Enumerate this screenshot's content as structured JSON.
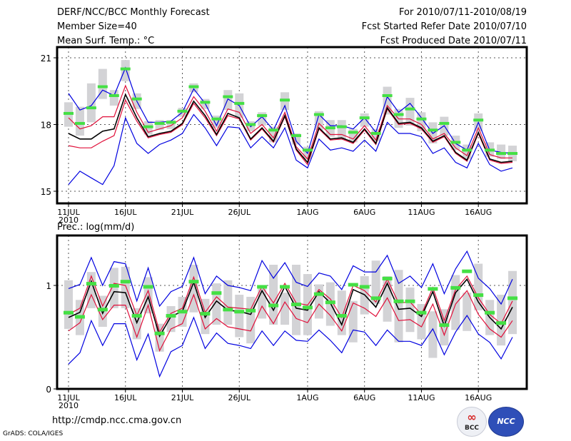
{
  "header": {
    "title": "DERF/NCC/BCC Monthly Forecast",
    "member_size": "Member Size=40",
    "variable_temp": "Mean Surf. Temp.: °C",
    "period": "For 2010/07/11-2010/08/19",
    "start_date": "Fcst Started Refer Date 2010/07/10",
    "produced_date": "Fcst Produced Date 2010/07/11"
  },
  "footer": {
    "url": "http://cmdp.ncc.cma.gov.cn",
    "credit": "GrADS: COLA/IGES",
    "logo_bcc": "BCC",
    "logo_ncc": "NCC"
  },
  "colors": {
    "box": "#d3d3d6",
    "marker": "#44e044",
    "mean": "#000000",
    "inner": "#e0103a",
    "outer": "#0000e0",
    "grid": "#555555"
  },
  "chart_data": [
    {
      "type": "line",
      "title": "Mean Surf. Temp.: °C",
      "x_start": "2010-07-11",
      "x_end": "2010-08-19",
      "days": 40,
      "xtick_labels": [
        "11JUL",
        "16JUL",
        "21JUL",
        "26JUL",
        "1AUG",
        "6AUG",
        "11AUG",
        "16AUG"
      ],
      "xtick_day_index": [
        0,
        5,
        10,
        15,
        21,
        26,
        31,
        36
      ],
      "x_sublabel": "2010",
      "ylim": [
        14.5,
        21.5
      ],
      "yticks": [
        15,
        18,
        21
      ],
      "grid": true,
      "series": [
        {
          "name": "box_upper",
          "values": [
            19.0,
            18.8,
            19.85,
            20.5,
            19.55,
            20.9,
            19.4,
            18.15,
            18.2,
            18.2,
            18.75,
            19.85,
            19.15,
            18.4,
            19.55,
            19.4,
            18.15,
            18.55,
            17.9,
            19.45,
            17.6,
            17.0,
            18.6,
            18.2,
            18.2,
            17.8,
            18.5,
            17.8,
            19.7,
            18.7,
            19.2,
            18.55,
            18.1,
            18.35,
            17.5,
            17.1,
            18.5,
            17.2,
            17.1,
            17.05
          ]
        },
        {
          "name": "box_lower",
          "values": [
            17.9,
            17.5,
            18.1,
            19.15,
            18.85,
            19.95,
            18.7,
            17.55,
            17.75,
            17.8,
            18.35,
            19.45,
            18.7,
            17.85,
            18.65,
            18.3,
            17.7,
            17.95,
            17.2,
            18.65,
            17.1,
            16.45,
            17.75,
            17.45,
            17.3,
            17.2,
            17.9,
            17.25,
            18.45,
            17.85,
            17.95,
            17.7,
            17.15,
            17.5,
            16.85,
            16.45,
            17.7,
            16.55,
            16.45,
            16.35
          ]
        },
        {
          "name": "observed_marker",
          "values": [
            18.5,
            18.05,
            18.75,
            19.7,
            19.3,
            20.5,
            19.15,
            17.9,
            18.05,
            18.1,
            18.6,
            19.7,
            19.0,
            18.25,
            19.25,
            18.95,
            18.0,
            18.4,
            17.75,
            19.1,
            17.5,
            16.85,
            18.45,
            17.85,
            17.9,
            17.65,
            18.3,
            17.6,
            19.3,
            18.45,
            18.7,
            18.25,
            17.75,
            18.05,
            17.2,
            16.85,
            18.2,
            16.85,
            16.7,
            16.7
          ]
        },
        {
          "name": "max",
          "values": [
            19.4,
            18.65,
            18.85,
            19.55,
            19.3,
            20.55,
            19.05,
            18.1,
            18.1,
            18.15,
            18.55,
            19.6,
            18.95,
            17.95,
            19.15,
            18.85,
            17.9,
            18.35,
            17.75,
            18.85,
            17.25,
            16.7,
            18.45,
            17.95,
            17.95,
            17.8,
            18.3,
            17.65,
            19.25,
            18.55,
            18.95,
            18.3,
            17.6,
            17.95,
            17.15,
            16.85,
            18.1,
            16.85,
            16.75,
            16.7
          ]
        },
        {
          "name": "upper",
          "values": [
            18.3,
            17.8,
            17.95,
            18.35,
            18.35,
            19.75,
            18.55,
            17.65,
            17.8,
            17.95,
            18.3,
            19.25,
            18.6,
            17.7,
            18.7,
            18.55,
            17.6,
            18.0,
            17.4,
            18.55,
            17.0,
            16.45,
            18.05,
            17.55,
            17.55,
            17.35,
            17.95,
            17.3,
            18.85,
            18.25,
            18.25,
            18.0,
            17.35,
            17.6,
            16.95,
            16.6,
            17.85,
            16.65,
            16.5,
            16.5
          ]
        },
        {
          "name": "mean",
          "values": [
            17.6,
            17.35,
            17.35,
            17.7,
            17.8,
            19.35,
            18.3,
            17.45,
            17.6,
            17.7,
            18.05,
            19.05,
            18.4,
            17.55,
            18.5,
            18.3,
            17.35,
            17.85,
            17.25,
            18.4,
            16.9,
            16.3,
            17.85,
            17.35,
            17.4,
            17.2,
            17.8,
            17.15,
            18.75,
            18.05,
            18.1,
            17.85,
            17.25,
            17.5,
            16.75,
            16.4,
            17.65,
            16.45,
            16.3,
            16.35
          ]
        },
        {
          "name": "lower",
          "values": [
            17.05,
            16.95,
            16.95,
            17.25,
            17.5,
            19.1,
            18.15,
            17.4,
            17.55,
            17.65,
            18.0,
            18.95,
            18.3,
            17.5,
            18.4,
            18.25,
            17.3,
            17.8,
            17.2,
            18.35,
            16.85,
            16.2,
            17.8,
            17.3,
            17.35,
            17.15,
            17.75,
            17.1,
            18.7,
            18.0,
            18.05,
            17.8,
            17.2,
            17.45,
            16.7,
            16.35,
            17.6,
            16.4,
            16.25,
            16.3
          ]
        },
        {
          "name": "min",
          "values": [
            15.3,
            15.9,
            15.6,
            15.3,
            16.15,
            18.3,
            17.15,
            16.7,
            17.1,
            17.3,
            17.6,
            18.45,
            17.85,
            17.05,
            17.9,
            17.85,
            16.95,
            17.45,
            16.95,
            17.85,
            16.4,
            16.05,
            17.35,
            16.85,
            16.95,
            16.8,
            17.3,
            16.8,
            18.1,
            17.6,
            17.6,
            17.45,
            16.7,
            16.95,
            16.3,
            16.05,
            17.15,
            16.2,
            15.9,
            16.05
          ]
        }
      ]
    },
    {
      "type": "line",
      "title": "Prec.: log(mm/d)",
      "x_start": "2010-07-11",
      "x_end": "2010-08-19",
      "days": 40,
      "xtick_labels": [
        "11JUL",
        "16JUL",
        "21JUL",
        "26JUL",
        "1AUG",
        "6AUG",
        "11AUG",
        "16AUG"
      ],
      "xtick_day_index": [
        0,
        5,
        10,
        15,
        21,
        26,
        31,
        36
      ],
      "x_sublabel": "2010",
      "ylim": [
        0,
        1.48
      ],
      "yticks": [
        0,
        1
      ],
      "grid": true,
      "series": [
        {
          "name": "box_upper",
          "values": [
            1.05,
            0.86,
            1.13,
            0.9,
            1.17,
            1.18,
            0.78,
            1.08,
            0.63,
            0.8,
            0.89,
            1.2,
            0.87,
            1.02,
            1.05,
            0.91,
            0.89,
            0.97,
            1.2,
            0.93,
            1.2,
            1.11,
            1.01,
            1.03,
            0.95,
            0.85,
            1.09,
            1.24,
            1.09,
            1.15,
            0.98,
            0.82,
            0.75,
            0.77,
            1.1,
            0.93,
            1.21,
            0.86,
            0.91,
            1.14
          ]
        },
        {
          "name": "box_lower",
          "values": [
            0.58,
            0.52,
            0.78,
            0.6,
            0.78,
            0.78,
            0.48,
            0.73,
            0.36,
            0.55,
            0.6,
            0.74,
            0.53,
            0.62,
            0.62,
            0.5,
            0.44,
            0.68,
            0.62,
            0.62,
            0.52,
            0.52,
            0.68,
            0.61,
            0.52,
            0.45,
            0.72,
            0.82,
            0.65,
            0.45,
            0.55,
            0.48,
            0.3,
            0.42,
            0.57,
            0.56,
            0.76,
            0.52,
            0.42,
            0.53
          ]
        },
        {
          "name": "observed_marker",
          "values": [
            0.74,
            0.7,
            1.02,
            0.77,
            1.0,
            1.04,
            0.71,
            0.99,
            0.54,
            0.71,
            0.75,
            1.04,
            0.73,
            0.93,
            0.77,
            0.75,
            0.76,
            0.99,
            0.81,
            0.99,
            0.82,
            0.79,
            0.92,
            0.84,
            0.71,
            1.01,
            0.99,
            0.88,
            1.07,
            0.85,
            0.85,
            0.74,
            0.97,
            0.62,
            0.98,
            1.14,
            0.91,
            0.74,
            0.64,
            0.88
          ]
        },
        {
          "name": "max",
          "values": [
            0.97,
            1.01,
            1.27,
            1.0,
            1.23,
            1.21,
            0.85,
            1.17,
            0.8,
            0.94,
            0.99,
            1.27,
            0.92,
            1.09,
            1.0,
            0.98,
            0.95,
            1.24,
            1.07,
            1.22,
            1.03,
            0.99,
            1.12,
            1.09,
            0.96,
            1.19,
            1.13,
            1.13,
            1.29,
            1.02,
            1.09,
            0.98,
            1.21,
            0.92,
            1.16,
            1.33,
            1.07,
            0.97,
            0.82,
            1.06
          ]
        },
        {
          "name": "upper",
          "values": [
            0.72,
            0.78,
            1.09,
            0.8,
            1.02,
            1.0,
            0.71,
            0.95,
            0.55,
            0.73,
            0.78,
            1.08,
            0.74,
            0.89,
            0.79,
            0.78,
            0.77,
            0.99,
            0.83,
            1.02,
            0.83,
            0.81,
            0.96,
            0.87,
            0.69,
            1.0,
            0.95,
            0.84,
            1.06,
            0.83,
            0.84,
            0.72,
            0.98,
            0.66,
            0.96,
            1.09,
            0.88,
            0.72,
            0.63,
            0.85
          ]
        },
        {
          "name": "mean",
          "values": [
            0.69,
            0.74,
            1.04,
            0.73,
            0.94,
            0.93,
            0.64,
            0.89,
            0.51,
            0.7,
            0.75,
            1.03,
            0.69,
            0.85,
            0.76,
            0.75,
            0.72,
            0.95,
            0.76,
            0.99,
            0.78,
            0.76,
            0.94,
            0.83,
            0.62,
            0.96,
            0.91,
            0.79,
            1.02,
            0.77,
            0.78,
            0.7,
            0.94,
            0.61,
            0.93,
            1.06,
            0.84,
            0.69,
            0.58,
            0.79
          ]
        },
        {
          "name": "lower",
          "values": [
            0.56,
            0.64,
            0.91,
            0.67,
            0.81,
            0.81,
            0.5,
            0.81,
            0.37,
            0.58,
            0.63,
            0.91,
            0.58,
            0.68,
            0.6,
            0.58,
            0.56,
            0.8,
            0.63,
            0.84,
            0.68,
            0.64,
            0.82,
            0.71,
            0.56,
            0.83,
            0.78,
            0.7,
            0.88,
            0.66,
            0.67,
            0.6,
            0.82,
            0.52,
            0.82,
            0.95,
            0.72,
            0.58,
            0.5,
            0.66
          ]
        },
        {
          "name": "min",
          "values": [
            0.24,
            0.35,
            0.66,
            0.42,
            0.63,
            0.63,
            0.28,
            0.53,
            0.12,
            0.36,
            0.42,
            0.69,
            0.39,
            0.54,
            0.44,
            0.42,
            0.39,
            0.56,
            0.42,
            0.56,
            0.47,
            0.46,
            0.57,
            0.47,
            0.35,
            0.57,
            0.55,
            0.42,
            0.57,
            0.46,
            0.46,
            0.42,
            0.58,
            0.33,
            0.55,
            0.71,
            0.53,
            0.45,
            0.29,
            0.5
          ]
        }
      ]
    }
  ]
}
